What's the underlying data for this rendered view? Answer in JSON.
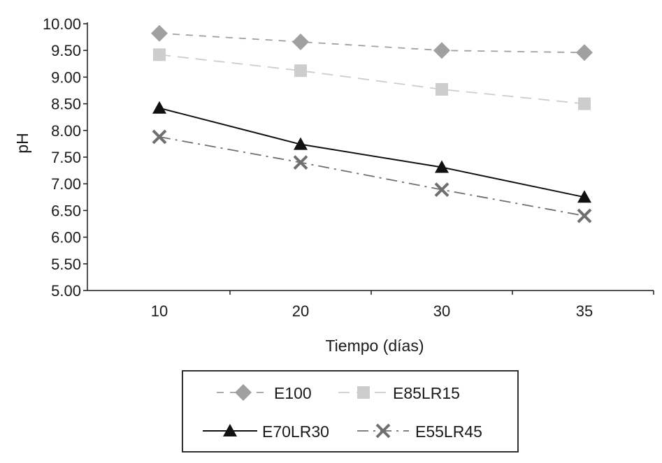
{
  "chart_data": {
    "type": "line",
    "title": "",
    "xlabel": "Tiempo (días)",
    "ylabel": "pH",
    "categories": [
      "10",
      "20",
      "30",
      "35"
    ],
    "ylim": [
      5.0,
      10.0
    ],
    "yticks": [
      "5.00",
      "5.50",
      "6.00",
      "6.50",
      "7.00",
      "7.50",
      "8.00",
      "8.50",
      "9.00",
      "9.50",
      "10.00"
    ],
    "grid": false,
    "legend": "bottom",
    "series": [
      {
        "name": "E100",
        "values": [
          9.82,
          9.66,
          9.5,
          9.46
        ],
        "color": "#a0a0a0",
        "marker": "diamond",
        "line": "dashed"
      },
      {
        "name": "E85LR15",
        "values": [
          9.42,
          9.12,
          8.77,
          8.5
        ],
        "color": "#cdcdcd",
        "marker": "square",
        "line": "long-dash"
      },
      {
        "name": "E70LR30",
        "values": [
          8.42,
          7.74,
          7.31,
          6.75
        ],
        "color": "#111111",
        "marker": "triangle",
        "line": "solid"
      },
      {
        "name": "E55LR45",
        "values": [
          7.88,
          7.4,
          6.89,
          6.4
        ],
        "color": "#6f6f6f",
        "marker": "x",
        "line": "dash-dot"
      }
    ]
  }
}
